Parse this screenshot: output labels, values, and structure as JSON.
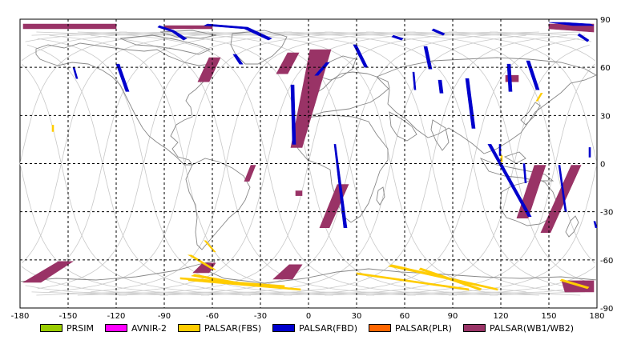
{
  "chart_data": {
    "type": "map",
    "projection": "equirectangular",
    "xlim": [
      -180,
      180
    ],
    "ylim": [
      -90,
      90
    ],
    "grid": true,
    "x_ticks": [
      "-180",
      "-150",
      "-120",
      "-90",
      "-60",
      "-30",
      "0",
      "30",
      "60",
      "90",
      "120",
      "150",
      "180"
    ],
    "y_ticks": [
      "90",
      "60",
      "30",
      "0",
      "-30",
      "-60",
      "-90"
    ],
    "x_tick_values": [
      -180,
      -150,
      -120,
      -90,
      -60,
      -30,
      0,
      30,
      60,
      90,
      120,
      150,
      180
    ],
    "y_tick_values": [
      90,
      60,
      30,
      0,
      -30,
      -60,
      -90
    ],
    "legend_placement": "bottom",
    "legend": [
      {
        "name": "PRSIM",
        "color": "#99cc00"
      },
      {
        "name": "AVNIR-2",
        "color": "#ff00ff"
      },
      {
        "name": "PALSAR(FBS)",
        "color": "#ffcc00"
      },
      {
        "name": "PALSAR(FBD)",
        "color": "#0000cc"
      },
      {
        "name": "PALSAR(PLR)",
        "color": "#ff6600"
      },
      {
        "name": "PALSAR(WB1/WB2)",
        "color": "#993366"
      }
    ],
    "swaths": [
      {
        "series": "PALSAR(WB1/WB2)",
        "points": [
          [
            -178,
            87
          ],
          [
            -120,
            87
          ],
          [
            -120,
            84
          ],
          [
            -178,
            84
          ]
        ]
      },
      {
        "series": "PALSAR(WB1/WB2)",
        "points": [
          [
            -90,
            86
          ],
          [
            -60,
            86
          ],
          [
            -60,
            84
          ],
          [
            -90,
            84
          ]
        ]
      },
      {
        "series": "PALSAR(WB1/WB2)",
        "points": [
          [
            150,
            87
          ],
          [
            178,
            87
          ],
          [
            178,
            82
          ],
          [
            150,
            84
          ]
        ]
      },
      {
        "series": "PALSAR(WB1/WB2)",
        "points": [
          [
            -62,
            66
          ],
          [
            -55,
            66
          ],
          [
            -62,
            51
          ],
          [
            -69,
            51
          ]
        ]
      },
      {
        "series": "PALSAR(WB1/WB2)",
        "points": [
          [
            -13,
            69
          ],
          [
            -6,
            69
          ],
          [
            -13,
            56
          ],
          [
            -20,
            56
          ]
        ]
      },
      {
        "series": "PALSAR(WB1/WB2)",
        "points": [
          [
            1,
            71
          ],
          [
            14,
            71
          ],
          [
            -4,
            10
          ],
          [
            -11,
            10
          ]
        ]
      },
      {
        "series": "PALSAR(WB1/WB2)",
        "points": [
          [
            -36,
            -1
          ],
          [
            -33,
            -1
          ],
          [
            -37,
            -11
          ],
          [
            -40,
            -11
          ]
        ]
      },
      {
        "series": "PALSAR(WB1/WB2)",
        "points": [
          [
            18,
            -13
          ],
          [
            25,
            -13
          ],
          [
            13,
            -40
          ],
          [
            7,
            -40
          ]
        ]
      },
      {
        "series": "PALSAR(WB1/WB2)",
        "points": [
          [
            -8,
            -17
          ],
          [
            -4,
            -17
          ],
          [
            -4,
            -20
          ],
          [
            -8,
            -20
          ]
        ]
      },
      {
        "series": "PALSAR(WB1/WB2)",
        "points": [
          [
            123,
            55
          ],
          [
            131,
            55
          ],
          [
            131,
            51
          ],
          [
            123,
            51
          ]
        ]
      },
      {
        "series": "PALSAR(WB1/WB2)",
        "points": [
          [
            141,
            -1
          ],
          [
            148,
            -1
          ],
          [
            137,
            -34
          ],
          [
            130,
            -34
          ]
        ]
      },
      {
        "series": "PALSAR(WB1/WB2)",
        "points": [
          [
            164,
            -1
          ],
          [
            170,
            -1
          ],
          [
            151,
            -43
          ],
          [
            145,
            -43
          ]
        ]
      },
      {
        "series": "PALSAR(WB1/WB2)",
        "points": [
          [
            -156,
            -61
          ],
          [
            -147,
            -61
          ],
          [
            -167,
            -74
          ],
          [
            -178,
            -74
          ]
        ]
      },
      {
        "series": "PALSAR(WB1/WB2)",
        "points": [
          [
            -66,
            -62
          ],
          [
            -58,
            -62
          ],
          [
            -62,
            -68
          ],
          [
            -72,
            -68
          ]
        ]
      },
      {
        "series": "PALSAR(WB1/WB2)",
        "points": [
          [
            -12,
            -63
          ],
          [
            -4,
            -63
          ],
          [
            -10,
            -72
          ],
          [
            -22,
            -72
          ]
        ]
      },
      {
        "series": "PALSAR(WB1/WB2)",
        "points": [
          [
            158,
            -73
          ],
          [
            178,
            -73
          ],
          [
            178,
            -80
          ],
          [
            160,
            -80
          ]
        ]
      },
      {
        "series": "PALSAR(FBD)",
        "points": [
          [
            -94,
            85
          ],
          [
            -85,
            82
          ],
          [
            -78,
            77
          ],
          [
            -76,
            78
          ],
          [
            -84,
            83
          ],
          [
            -93,
            86
          ]
        ]
      },
      {
        "series": "PALSAR(FBD)",
        "points": [
          [
            -65,
            86
          ],
          [
            -40,
            84
          ],
          [
            -25,
            77
          ],
          [
            -23,
            78
          ],
          [
            -38,
            85
          ],
          [
            -63,
            87
          ]
        ]
      },
      {
        "series": "PALSAR(FBD)",
        "points": [
          [
            -147,
            60
          ],
          [
            -146,
            60
          ],
          [
            -144,
            53
          ],
          [
            -145,
            53
          ]
        ]
      },
      {
        "series": "PALSAR(FBD)",
        "points": [
          [
            -120,
            62
          ],
          [
            -118,
            62
          ],
          [
            -112,
            45
          ],
          [
            -114,
            45
          ]
        ]
      },
      {
        "series": "PALSAR(FBD)",
        "points": [
          [
            -47,
            68
          ],
          [
            -45,
            68
          ],
          [
            -41,
            62
          ],
          [
            -43,
            62
          ]
        ]
      },
      {
        "series": "PALSAR(FBD)",
        "points": [
          [
            -11,
            49
          ],
          [
            -9,
            49
          ],
          [
            -8,
            12
          ],
          [
            -10,
            12
          ]
        ]
      },
      {
        "series": "PALSAR(FBD)",
        "points": [
          [
            16,
            12
          ],
          [
            17,
            12
          ],
          [
            24,
            -40
          ],
          [
            22,
            -40
          ]
        ]
      },
      {
        "series": "PALSAR(FBD)",
        "points": [
          [
            11,
            63
          ],
          [
            13,
            63
          ],
          [
            6,
            55
          ],
          [
            4,
            55
          ]
        ]
      },
      {
        "series": "PALSAR(FBD)",
        "points": [
          [
            28,
            74
          ],
          [
            30,
            74
          ],
          [
            37,
            60
          ],
          [
            35,
            60
          ]
        ]
      },
      {
        "series": "PALSAR(FBD)",
        "points": [
          [
            65,
            57
          ],
          [
            66,
            57
          ],
          [
            67,
            46
          ],
          [
            66,
            46
          ]
        ]
      },
      {
        "series": "PALSAR(FBD)",
        "points": [
          [
            72,
            73
          ],
          [
            74,
            73
          ],
          [
            77,
            59
          ],
          [
            75,
            59
          ]
        ]
      },
      {
        "series": "PALSAR(FBD)",
        "points": [
          [
            81,
            52
          ],
          [
            83,
            52
          ],
          [
            84,
            44
          ],
          [
            82,
            44
          ]
        ]
      },
      {
        "series": "PALSAR(FBD)",
        "points": [
          [
            98,
            53
          ],
          [
            100,
            53
          ],
          [
            104,
            22
          ],
          [
            102,
            22
          ]
        ]
      },
      {
        "series": "PALSAR(FBD)",
        "points": [
          [
            124,
            62
          ],
          [
            126,
            62
          ],
          [
            127,
            45
          ],
          [
            125,
            45
          ]
        ]
      },
      {
        "series": "PALSAR(FBD)",
        "points": [
          [
            136,
            64
          ],
          [
            138,
            64
          ],
          [
            144,
            46
          ],
          [
            142,
            46
          ]
        ]
      },
      {
        "series": "PALSAR(FBD)",
        "points": [
          [
            112,
            12
          ],
          [
            114,
            12
          ],
          [
            139,
            -33
          ],
          [
            137,
            -33
          ]
        ]
      },
      {
        "series": "PALSAR(FBD)",
        "points": [
          [
            134,
            0
          ],
          [
            135,
            0
          ],
          [
            136,
            -12
          ],
          [
            135,
            -12
          ]
        ]
      },
      {
        "series": "PALSAR(FBD)",
        "points": [
          [
            156,
            -1
          ],
          [
            157,
            -1
          ],
          [
            161,
            -30
          ],
          [
            160,
            -30
          ]
        ]
      },
      {
        "series": "PALSAR(FBD)",
        "points": [
          [
            119,
            12
          ],
          [
            120,
            12
          ],
          [
            120,
            5
          ],
          [
            119,
            5
          ]
        ]
      },
      {
        "series": "PALSAR(FBD)",
        "points": [
          [
            175,
            10
          ],
          [
            176,
            10
          ],
          [
            176,
            4
          ],
          [
            175,
            4
          ]
        ]
      },
      {
        "series": "PALSAR(FBD)",
        "points": [
          [
            160,
            88
          ],
          [
            176,
            87
          ],
          [
            178,
            86
          ],
          [
            165,
            86
          ],
          [
            150,
            88
          ]
        ]
      },
      {
        "series": "PALSAR(FBD)",
        "points": [
          [
            168,
            80
          ],
          [
            174,
            76
          ],
          [
            175,
            77
          ],
          [
            169,
            81
          ]
        ]
      },
      {
        "series": "PALSAR(FBD)",
        "points": [
          [
            52,
            79
          ],
          [
            58,
            77
          ],
          [
            59,
            78
          ],
          [
            53,
            80
          ]
        ]
      },
      {
        "series": "PALSAR(FBD)",
        "points": [
          [
            77,
            83
          ],
          [
            84,
            80
          ],
          [
            85,
            81
          ],
          [
            78,
            84
          ]
        ]
      },
      {
        "series": "PALSAR(FBD)",
        "points": [
          [
            178,
            -36
          ],
          [
            179,
            -36
          ],
          [
            180,
            -40
          ],
          [
            179,
            -40
          ]
        ]
      },
      {
        "series": "PALSAR(FBS)",
        "points": [
          [
            -75,
            -57
          ],
          [
            -60,
            -66
          ],
          [
            -58,
            -66
          ],
          [
            -73,
            -57
          ]
        ]
      },
      {
        "series": "PALSAR(FBS)",
        "points": [
          [
            -65,
            -48
          ],
          [
            -59,
            -55
          ],
          [
            -58,
            -55
          ],
          [
            -64,
            -48
          ]
        ]
      },
      {
        "series": "PALSAR(FBS)",
        "points": [
          [
            -73,
            -70
          ],
          [
            -40,
            -76
          ],
          [
            -38,
            -75
          ],
          [
            -71,
            -69
          ]
        ]
      },
      {
        "series": "PALSAR(FBS)",
        "points": [
          [
            -80,
            -72
          ],
          [
            -15,
            -77
          ],
          [
            -15,
            -76
          ],
          [
            -80,
            -71
          ]
        ]
      },
      {
        "series": "PALSAR(FBS)",
        "points": [
          [
            -75,
            -73
          ],
          [
            -5,
            -79
          ],
          [
            -5,
            -78
          ],
          [
            -75,
            -72
          ]
        ]
      },
      {
        "series": "PALSAR(FBS)",
        "points": [
          [
            30,
            -69
          ],
          [
            100,
            -79
          ],
          [
            100,
            -78
          ],
          [
            30,
            -68
          ]
        ]
      },
      {
        "series": "PALSAR(FBS)",
        "points": [
          [
            50,
            -64
          ],
          [
            118,
            -79
          ],
          [
            118,
            -78
          ],
          [
            52,
            -63
          ]
        ]
      },
      {
        "series": "PALSAR(FBS)",
        "points": [
          [
            70,
            -65
          ],
          [
            108,
            -78
          ],
          [
            107,
            -79
          ],
          [
            69,
            -66
          ]
        ]
      },
      {
        "series": "PALSAR(FBS)",
        "points": [
          [
            143,
            39
          ],
          [
            146,
            44
          ],
          [
            145,
            44
          ],
          [
            142,
            39
          ]
        ]
      },
      {
        "series": "PALSAR(FBS)",
        "points": [
          [
            -160,
            24
          ],
          [
            -159,
            24
          ],
          [
            -159,
            20
          ],
          [
            -160,
            20
          ]
        ]
      },
      {
        "series": "PALSAR(FBS)",
        "points": [
          [
            158,
            -72
          ],
          [
            175,
            -77
          ],
          [
            174,
            -78
          ],
          [
            157,
            -73
          ]
        ]
      },
      {
        "series": "PALSAR(FBS)",
        "points": [
          [
            120,
            5
          ],
          [
            121,
            5
          ],
          [
            121,
            1
          ],
          [
            120,
            1
          ]
        ]
      }
    ]
  }
}
